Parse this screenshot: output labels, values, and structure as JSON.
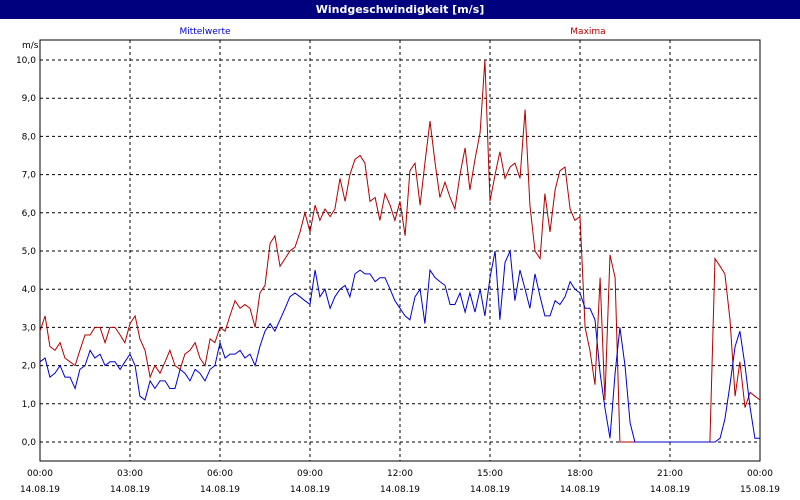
{
  "window": {
    "title": "Windgeschwindigkeit [m/s]"
  },
  "chart_data": {
    "type": "line",
    "title": "Windgeschwindigkeit [m/s]",
    "ylabel": "m/s",
    "ylim": [
      0,
      10
    ],
    "xlim": [
      0,
      24
    ],
    "grid": true,
    "legend_placement": "top",
    "y_ticks": [
      "0,0",
      "1,0",
      "2,0",
      "3,0",
      "4,0",
      "5,0",
      "6,0",
      "7,0",
      "8,0",
      "9,0",
      "10,0"
    ],
    "x_ticks": [
      {
        "time": "00:00",
        "date": "14.08.19"
      },
      {
        "time": "03:00",
        "date": "14.08.19"
      },
      {
        "time": "06:00",
        "date": "14.08.19"
      },
      {
        "time": "09:00",
        "date": "14.08.19"
      },
      {
        "time": "12:00",
        "date": "14.08.19"
      },
      {
        "time": "15:00",
        "date": "14.08.19"
      },
      {
        "time": "18:00",
        "date": "14.08.19"
      },
      {
        "time": "21:00",
        "date": "14.08.19"
      },
      {
        "time": "00:00",
        "date": "15.08.19"
      }
    ],
    "series": [
      {
        "name": "Mittelwerte",
        "color": "#0000cc",
        "points": [
          [
            0,
            2.1
          ],
          [
            0.17,
            2.2
          ],
          [
            0.33,
            1.7
          ],
          [
            0.5,
            1.8
          ],
          [
            0.67,
            2.0
          ],
          [
            0.83,
            1.7
          ],
          [
            1.0,
            1.7
          ],
          [
            1.17,
            1.4
          ],
          [
            1.33,
            1.9
          ],
          [
            1.5,
            2.0
          ],
          [
            1.67,
            2.4
          ],
          [
            1.83,
            2.2
          ],
          [
            2.0,
            2.3
          ],
          [
            2.17,
            2.0
          ],
          [
            2.33,
            2.1
          ],
          [
            2.5,
            2.1
          ],
          [
            2.67,
            1.9
          ],
          [
            2.83,
            2.1
          ],
          [
            3.0,
            2.3
          ],
          [
            3.17,
            2.0
          ],
          [
            3.33,
            1.2
          ],
          [
            3.5,
            1.1
          ],
          [
            3.67,
            1.6
          ],
          [
            3.83,
            1.4
          ],
          [
            4.0,
            1.6
          ],
          [
            4.17,
            1.6
          ],
          [
            4.33,
            1.4
          ],
          [
            4.5,
            1.4
          ],
          [
            4.67,
            1.9
          ],
          [
            4.83,
            1.8
          ],
          [
            5.0,
            1.6
          ],
          [
            5.17,
            1.9
          ],
          [
            5.33,
            1.8
          ],
          [
            5.5,
            1.6
          ],
          [
            5.67,
            1.9
          ],
          [
            5.83,
            2.0
          ],
          [
            6.0,
            2.6
          ],
          [
            6.17,
            2.2
          ],
          [
            6.33,
            2.3
          ],
          [
            6.5,
            2.3
          ],
          [
            6.67,
            2.4
          ],
          [
            6.83,
            2.2
          ],
          [
            7.0,
            2.3
          ],
          [
            7.17,
            2.0
          ],
          [
            7.33,
            2.5
          ],
          [
            7.5,
            2.9
          ],
          [
            7.67,
            3.1
          ],
          [
            7.83,
            2.9
          ],
          [
            8.0,
            3.2
          ],
          [
            8.17,
            3.5
          ],
          [
            8.33,
            3.8
          ],
          [
            8.5,
            3.9
          ],
          [
            8.67,
            3.8
          ],
          [
            8.83,
            3.7
          ],
          [
            9.0,
            3.6
          ],
          [
            9.17,
            4.5
          ],
          [
            9.33,
            3.8
          ],
          [
            9.5,
            4.0
          ],
          [
            9.67,
            3.5
          ],
          [
            9.83,
            3.8
          ],
          [
            10.0,
            4.0
          ],
          [
            10.17,
            4.1
          ],
          [
            10.33,
            3.8
          ],
          [
            10.5,
            4.4
          ],
          [
            10.67,
            4.5
          ],
          [
            10.83,
            4.4
          ],
          [
            11.0,
            4.4
          ],
          [
            11.17,
            4.2
          ],
          [
            11.33,
            4.3
          ],
          [
            11.5,
            4.3
          ],
          [
            11.67,
            4.0
          ],
          [
            11.83,
            3.7
          ],
          [
            12.0,
            3.5
          ],
          [
            12.17,
            3.3
          ],
          [
            12.33,
            3.2
          ],
          [
            12.5,
            3.8
          ],
          [
            12.67,
            4.0
          ],
          [
            12.83,
            3.1
          ],
          [
            13.0,
            4.5
          ],
          [
            13.17,
            4.3
          ],
          [
            13.33,
            4.2
          ],
          [
            13.5,
            4.1
          ],
          [
            13.67,
            3.6
          ],
          [
            13.83,
            3.6
          ],
          [
            14.0,
            3.9
          ],
          [
            14.17,
            3.4
          ],
          [
            14.33,
            3.9
          ],
          [
            14.5,
            3.4
          ],
          [
            14.67,
            4.0
          ],
          [
            14.83,
            3.3
          ],
          [
            15.0,
            4.3
          ],
          [
            15.17,
            5.0
          ],
          [
            15.33,
            3.2
          ],
          [
            15.5,
            4.7
          ],
          [
            15.67,
            5.0
          ],
          [
            15.83,
            3.7
          ],
          [
            16.0,
            4.5
          ],
          [
            16.17,
            4.0
          ],
          [
            16.33,
            3.5
          ],
          [
            16.5,
            4.4
          ],
          [
            16.67,
            3.8
          ],
          [
            16.83,
            3.3
          ],
          [
            17.0,
            3.3
          ],
          [
            17.17,
            3.7
          ],
          [
            17.33,
            3.6
          ],
          [
            17.5,
            3.8
          ],
          [
            17.67,
            4.2
          ],
          [
            17.83,
            4.0
          ],
          [
            18.0,
            3.9
          ],
          [
            18.17,
            3.5
          ],
          [
            18.33,
            3.5
          ],
          [
            18.5,
            3.2
          ],
          [
            18.67,
            1.8
          ],
          [
            18.83,
            0.9
          ],
          [
            19.0,
            0.1
          ],
          [
            19.17,
            1.8
          ],
          [
            19.33,
            3.0
          ],
          [
            19.5,
            2.0
          ],
          [
            19.67,
            0.5
          ],
          [
            19.83,
            0
          ],
          [
            20.0,
            0
          ],
          [
            20.5,
            0
          ],
          [
            21.0,
            0
          ],
          [
            21.5,
            0
          ],
          [
            22.0,
            0
          ],
          [
            22.17,
            0
          ],
          [
            22.5,
            0
          ],
          [
            22.67,
            0.1
          ],
          [
            22.83,
            0.6
          ],
          [
            23.0,
            1.5
          ],
          [
            23.17,
            2.5
          ],
          [
            23.33,
            2.9
          ],
          [
            23.5,
            2.0
          ],
          [
            23.67,
            0.9
          ],
          [
            23.83,
            0.1
          ],
          [
            24.0,
            0.1
          ],
          [
            24.17,
            0.0
          ],
          [
            24.33,
            0.1
          ],
          [
            24.5,
            0.0
          ]
        ]
      },
      {
        "name": "Maxima",
        "color": "#b20000",
        "points": [
          [
            0,
            2.9
          ],
          [
            0.17,
            3.3
          ],
          [
            0.33,
            2.5
          ],
          [
            0.5,
            2.4
          ],
          [
            0.67,
            2.6
          ],
          [
            0.83,
            2.2
          ],
          [
            1.0,
            2.1
          ],
          [
            1.17,
            2.0
          ],
          [
            1.33,
            2.4
          ],
          [
            1.5,
            2.8
          ],
          [
            1.67,
            2.8
          ],
          [
            1.83,
            3.0
          ],
          [
            2.0,
            3.0
          ],
          [
            2.17,
            2.6
          ],
          [
            2.33,
            3.0
          ],
          [
            2.5,
            3.0
          ],
          [
            2.67,
            2.8
          ],
          [
            2.83,
            2.6
          ],
          [
            3.0,
            3.1
          ],
          [
            3.17,
            3.3
          ],
          [
            3.33,
            2.7
          ],
          [
            3.5,
            2.4
          ],
          [
            3.67,
            1.7
          ],
          [
            3.83,
            2.0
          ],
          [
            4.0,
            1.8
          ],
          [
            4.17,
            2.1
          ],
          [
            4.33,
            2.4
          ],
          [
            4.5,
            2.0
          ],
          [
            4.67,
            1.9
          ],
          [
            4.83,
            2.3
          ],
          [
            5.0,
            2.4
          ],
          [
            5.17,
            2.6
          ],
          [
            5.33,
            2.2
          ],
          [
            5.5,
            2.0
          ],
          [
            5.67,
            2.7
          ],
          [
            5.83,
            2.6
          ],
          [
            6.0,
            3.0
          ],
          [
            6.17,
            2.9
          ],
          [
            6.33,
            3.3
          ],
          [
            6.5,
            3.7
          ],
          [
            6.67,
            3.5
          ],
          [
            6.83,
            3.6
          ],
          [
            7.0,
            3.5
          ],
          [
            7.17,
            3.0
          ],
          [
            7.33,
            3.9
          ],
          [
            7.5,
            4.1
          ],
          [
            7.67,
            5.2
          ],
          [
            7.83,
            5.4
          ],
          [
            8.0,
            4.6
          ],
          [
            8.17,
            4.8
          ],
          [
            8.33,
            5.0
          ],
          [
            8.5,
            5.1
          ],
          [
            8.67,
            5.5
          ],
          [
            8.83,
            6.0
          ],
          [
            9.0,
            5.5
          ],
          [
            9.17,
            6.2
          ],
          [
            9.33,
            5.8
          ],
          [
            9.5,
            6.1
          ],
          [
            9.67,
            5.9
          ],
          [
            9.83,
            6.1
          ],
          [
            10.0,
            6.9
          ],
          [
            10.17,
            6.3
          ],
          [
            10.33,
            7.0
          ],
          [
            10.5,
            7.4
          ],
          [
            10.67,
            7.5
          ],
          [
            10.83,
            7.3
          ],
          [
            11.0,
            6.3
          ],
          [
            11.17,
            6.4
          ],
          [
            11.33,
            5.8
          ],
          [
            11.5,
            6.5
          ],
          [
            11.67,
            6.2
          ],
          [
            11.83,
            5.8
          ],
          [
            12.0,
            6.3
          ],
          [
            12.17,
            5.4
          ],
          [
            12.33,
            7.1
          ],
          [
            12.5,
            7.3
          ],
          [
            12.67,
            6.2
          ],
          [
            12.83,
            7.3
          ],
          [
            13.0,
            8.4
          ],
          [
            13.17,
            7.3
          ],
          [
            13.33,
            6.4
          ],
          [
            13.5,
            6.8
          ],
          [
            13.67,
            6.4
          ],
          [
            13.83,
            6.1
          ],
          [
            14.0,
            7.0
          ],
          [
            14.17,
            7.7
          ],
          [
            14.33,
            6.6
          ],
          [
            14.5,
            7.4
          ],
          [
            14.67,
            8.1
          ],
          [
            14.83,
            10.0
          ],
          [
            15.0,
            6.3
          ],
          [
            15.17,
            7.0
          ],
          [
            15.33,
            7.6
          ],
          [
            15.5,
            6.9
          ],
          [
            15.67,
            7.2
          ],
          [
            15.83,
            7.3
          ],
          [
            16.0,
            6.9
          ],
          [
            16.17,
            8.7
          ],
          [
            16.33,
            6.2
          ],
          [
            16.5,
            5.0
          ],
          [
            16.67,
            4.8
          ],
          [
            16.83,
            6.5
          ],
          [
            17.0,
            5.5
          ],
          [
            17.17,
            6.6
          ],
          [
            17.33,
            7.1
          ],
          [
            17.5,
            7.2
          ],
          [
            17.67,
            6.1
          ],
          [
            17.83,
            5.8
          ],
          [
            18.0,
            5.9
          ],
          [
            18.17,
            3.0
          ],
          [
            18.33,
            2.4
          ],
          [
            18.5,
            1.5
          ],
          [
            18.67,
            4.3
          ],
          [
            18.83,
            1.1
          ],
          [
            19.0,
            4.9
          ],
          [
            19.17,
            4.3
          ],
          [
            19.33,
            0
          ],
          [
            19.5,
            0
          ],
          [
            20.0,
            0
          ],
          [
            20.5,
            0
          ],
          [
            21.0,
            0
          ],
          [
            21.5,
            0
          ],
          [
            22.0,
            0
          ],
          [
            22.17,
            0
          ],
          [
            22.33,
            0
          ],
          [
            22.5,
            4.8
          ],
          [
            22.67,
            4.6
          ],
          [
            22.83,
            4.4
          ],
          [
            23.0,
            3.2
          ],
          [
            23.17,
            1.2
          ],
          [
            23.33,
            2.1
          ],
          [
            23.5,
            0.9
          ],
          [
            23.67,
            1.3
          ],
          [
            23.83,
            1.2
          ],
          [
            24.0,
            1.1
          ]
        ]
      }
    ]
  }
}
